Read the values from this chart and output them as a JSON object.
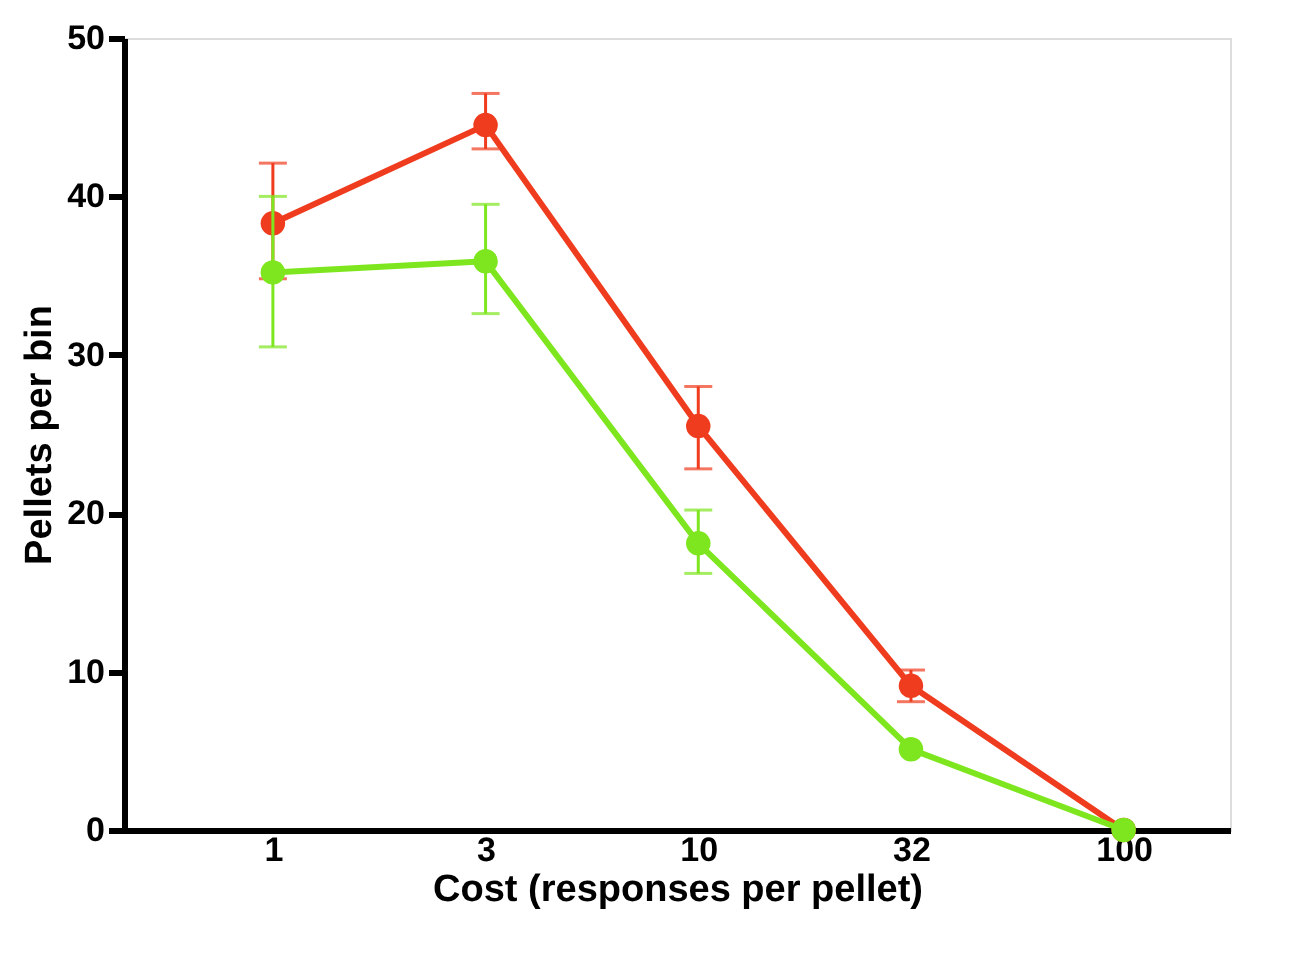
{
  "chart_data": {
    "type": "line",
    "xlabel": "Cost (responses per pellet)",
    "ylabel": "Pellets per bin",
    "categories": [
      "1",
      "3",
      "10",
      "32",
      "100"
    ],
    "series": [
      {
        "color": "#f03c1e",
        "values": [
          38.3,
          44.5,
          25.5,
          9.1,
          0
        ],
        "errors": [
          [
            34.8,
            42.1
          ],
          [
            43.0,
            46.5
          ],
          [
            22.8,
            28.0
          ],
          [
            8.1,
            10.1
          ],
          null
        ]
      },
      {
        "color": "#7ee61e",
        "values": [
          35.2,
          35.9,
          18.1,
          5.1,
          0
        ],
        "errors": [
          [
            30.5,
            40.0
          ],
          [
            32.6,
            39.5
          ],
          [
            16.2,
            20.2
          ],
          null,
          null
        ]
      }
    ],
    "ylim": [
      0,
      50
    ],
    "yticks": [
      0,
      10,
      20,
      30,
      40,
      50
    ],
    "grid": false,
    "marker": "circle",
    "line_style": "solid"
  }
}
